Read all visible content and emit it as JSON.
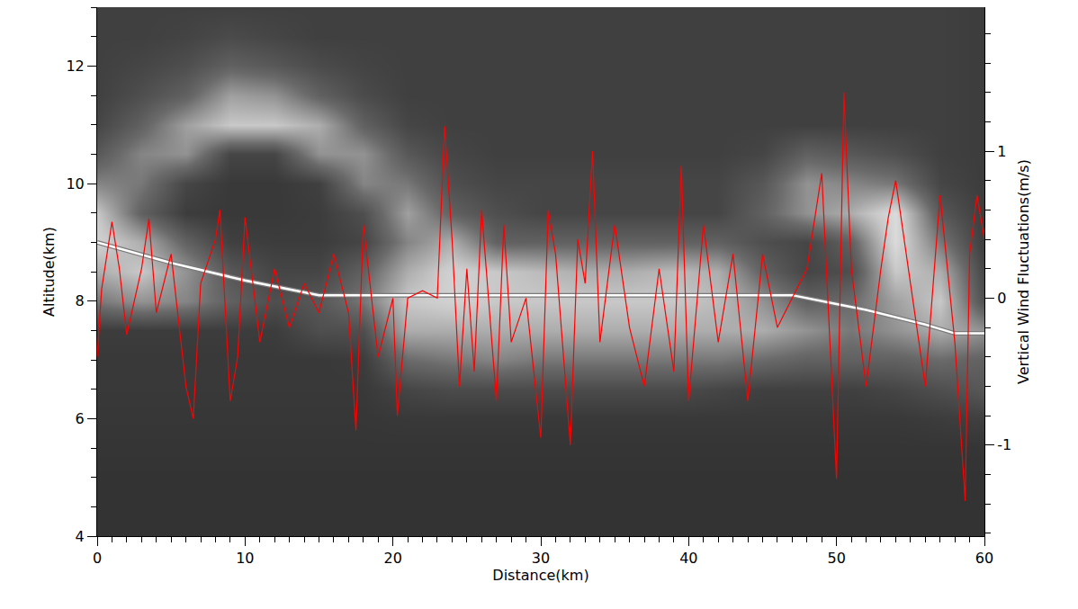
{
  "chart_data": {
    "type": "line",
    "x_label": "Distance(km)",
    "y_label": "Altitude(km)",
    "y2_label": "Vertical Wind Fluctuations(m/s)",
    "xlim": [
      0,
      60
    ],
    "ylim": [
      4,
      13
    ],
    "y2lim": [
      -1.62,
      1.98
    ],
    "xticks": [
      0,
      10,
      20,
      30,
      40,
      50,
      60
    ],
    "yticks": [
      4,
      6,
      8,
      10,
      12
    ],
    "y2ticks": [
      -1,
      0,
      1
    ],
    "grid": false,
    "background": {
      "type": "heatmap",
      "zlim": [
        0,
        1
      ],
      "x": [
        0,
        3,
        6,
        9,
        12,
        15,
        18,
        21,
        24,
        27,
        30,
        33,
        36,
        39,
        42,
        45,
        48,
        51,
        54,
        57,
        60
      ],
      "y": [
        4,
        4.5,
        5,
        5.5,
        6,
        6.5,
        7,
        7.5,
        8,
        8.5,
        9,
        9.5,
        10,
        10.5,
        11,
        11.5,
        12,
        12.5,
        13
      ],
      "z": [
        [
          0.05,
          0.05,
          0.05,
          0.05,
          0.05,
          0.05,
          0.05,
          0.05,
          0.05,
          0.05,
          0.05,
          0.05,
          0.05,
          0.05,
          0.05,
          0.05,
          0.05,
          0.05,
          0.05,
          0.05,
          0.05
        ],
        [
          0.05,
          0.05,
          0.05,
          0.05,
          0.05,
          0.05,
          0.05,
          0.05,
          0.05,
          0.05,
          0.05,
          0.05,
          0.05,
          0.05,
          0.05,
          0.05,
          0.05,
          0.05,
          0.05,
          0.05,
          0.05
        ],
        [
          0.05,
          0.05,
          0.05,
          0.05,
          0.05,
          0.05,
          0.05,
          0.05,
          0.05,
          0.05,
          0.05,
          0.05,
          0.05,
          0.05,
          0.05,
          0.05,
          0.05,
          0.05,
          0.05,
          0.05,
          0.05
        ],
        [
          0.06,
          0.06,
          0.06,
          0.06,
          0.06,
          0.06,
          0.06,
          0.06,
          0.06,
          0.06,
          0.06,
          0.06,
          0.06,
          0.06,
          0.06,
          0.06,
          0.06,
          0.06,
          0.06,
          0.06,
          0.06
        ],
        [
          0.07,
          0.07,
          0.07,
          0.07,
          0.07,
          0.07,
          0.07,
          0.08,
          0.08,
          0.08,
          0.08,
          0.08,
          0.08,
          0.08,
          0.08,
          0.08,
          0.08,
          0.08,
          0.08,
          0.1,
          0.12
        ],
        [
          0.08,
          0.08,
          0.08,
          0.08,
          0.08,
          0.08,
          0.08,
          0.15,
          0.18,
          0.18,
          0.18,
          0.18,
          0.18,
          0.18,
          0.15,
          0.12,
          0.12,
          0.12,
          0.15,
          0.2,
          0.25
        ],
        [
          0.08,
          0.08,
          0.08,
          0.08,
          0.08,
          0.08,
          0.1,
          0.35,
          0.4,
          0.45,
          0.4,
          0.4,
          0.4,
          0.4,
          0.4,
          0.35,
          0.3,
          0.3,
          0.3,
          0.35,
          0.3
        ],
        [
          0.1,
          0.1,
          0.1,
          0.1,
          0.1,
          0.2,
          0.2,
          0.6,
          0.6,
          0.6,
          0.6,
          0.6,
          0.6,
          0.6,
          0.6,
          0.6,
          0.5,
          0.4,
          0.5,
          0.6,
          0.5
        ],
        [
          0.4,
          0.5,
          0.45,
          0.3,
          0.2,
          0.25,
          0.4,
          0.7,
          0.75,
          0.7,
          0.7,
          0.7,
          0.7,
          0.7,
          0.65,
          0.5,
          0.3,
          0.35,
          0.55,
          0.7,
          0.2
        ],
        [
          0.6,
          0.7,
          0.5,
          0.25,
          0.15,
          0.15,
          0.3,
          0.6,
          0.75,
          0.7,
          0.65,
          0.6,
          0.6,
          0.65,
          0.6,
          0.3,
          0.15,
          0.2,
          0.7,
          0.6,
          0.15
        ],
        [
          0.75,
          0.6,
          0.3,
          0.12,
          0.1,
          0.1,
          0.15,
          0.45,
          0.6,
          0.3,
          0.3,
          0.3,
          0.3,
          0.3,
          0.3,
          0.2,
          0.15,
          0.3,
          0.8,
          0.4,
          0.1
        ],
        [
          0.7,
          0.3,
          0.1,
          0.08,
          0.08,
          0.1,
          0.2,
          0.55,
          0.3,
          0.2,
          0.15,
          0.15,
          0.15,
          0.15,
          0.15,
          0.3,
          0.5,
          0.6,
          0.8,
          0.25,
          0.1
        ],
        [
          0.45,
          0.4,
          0.15,
          0.08,
          0.08,
          0.12,
          0.45,
          0.4,
          0.2,
          0.15,
          0.15,
          0.15,
          0.15,
          0.15,
          0.15,
          0.25,
          0.5,
          0.45,
          0.4,
          0.15,
          0.1
        ],
        [
          0.25,
          0.45,
          0.5,
          0.15,
          0.15,
          0.5,
          0.5,
          0.25,
          0.15,
          0.12,
          0.12,
          0.12,
          0.12,
          0.12,
          0.12,
          0.15,
          0.3,
          0.25,
          0.2,
          0.12,
          0.1
        ],
        [
          0.15,
          0.3,
          0.55,
          0.7,
          0.7,
          0.6,
          0.3,
          0.15,
          0.12,
          0.12,
          0.12,
          0.12,
          0.12,
          0.12,
          0.12,
          0.12,
          0.12,
          0.12,
          0.12,
          0.12,
          0.1
        ],
        [
          0.12,
          0.2,
          0.3,
          0.55,
          0.5,
          0.3,
          0.18,
          0.12,
          0.12,
          0.12,
          0.12,
          0.12,
          0.12,
          0.12,
          0.12,
          0.12,
          0.12,
          0.12,
          0.12,
          0.12,
          0.1
        ],
        [
          0.12,
          0.15,
          0.2,
          0.3,
          0.25,
          0.18,
          0.14,
          0.12,
          0.12,
          0.12,
          0.12,
          0.12,
          0.12,
          0.12,
          0.12,
          0.12,
          0.12,
          0.12,
          0.12,
          0.12,
          0.1
        ],
        [
          0.12,
          0.12,
          0.14,
          0.18,
          0.15,
          0.12,
          0.12,
          0.12,
          0.12,
          0.12,
          0.12,
          0.12,
          0.12,
          0.12,
          0.12,
          0.12,
          0.12,
          0.12,
          0.12,
          0.12,
          0.1
        ],
        [
          0.12,
          0.12,
          0.12,
          0.12,
          0.12,
          0.12,
          0.12,
          0.12,
          0.12,
          0.12,
          0.12,
          0.12,
          0.12,
          0.12,
          0.12,
          0.12,
          0.12,
          0.12,
          0.12,
          0.12,
          0.1
        ]
      ]
    },
    "series": [
      {
        "color": "#ffffff",
        "line_style": "solid",
        "x": [
          0,
          5,
          10,
          12,
          15,
          20,
          30,
          40,
          47,
          50,
          52,
          56,
          58,
          60
        ],
        "values": [
          9.0,
          8.65,
          8.35,
          8.25,
          8.1,
          8.1,
          8.1,
          8.1,
          8.1,
          7.95,
          7.85,
          7.6,
          7.45,
          7.45
        ]
      },
      {
        "color": "#ff0000",
        "line_style": "solid",
        "axis": "y2",
        "x": [
          0,
          0.3,
          1,
          1.5,
          2,
          3,
          3.5,
          4,
          5,
          6,
          6.5,
          7,
          8,
          8.3,
          9,
          9.5,
          10,
          11,
          12,
          13,
          14,
          15,
          16,
          17,
          17.5,
          18,
          19,
          20,
          20.3,
          21,
          22,
          23,
          23.5,
          24,
          24.5,
          25,
          25.5,
          26,
          27,
          27.5,
          28,
          29,
          30,
          30.5,
          31,
          32,
          32.5,
          33,
          33.5,
          34,
          35,
          36,
          37,
          38,
          39,
          39.5,
          40,
          41,
          42,
          43,
          44,
          45,
          46,
          47,
          48,
          49,
          50,
          50.5,
          51,
          52,
          53,
          53.5,
          54,
          55,
          56,
          57,
          58,
          58.7,
          59,
          59.5,
          60
        ],
        "values": [
          -0.4,
          0.06,
          0.52,
          0.2,
          -0.25,
          0.2,
          0.54,
          -0.1,
          0.3,
          -0.6,
          -0.82,
          0.1,
          0.4,
          0.6,
          -0.7,
          -0.4,
          0.55,
          -0.3,
          0.2,
          -0.2,
          0.1,
          -0.1,
          0.3,
          -0.1,
          -0.9,
          0.5,
          -0.4,
          0.0,
          -0.8,
          0.0,
          0.05,
          0.0,
          1.17,
          0.4,
          -0.6,
          0.2,
          -0.5,
          0.6,
          -0.7,
          0.5,
          -0.3,
          0.0,
          -0.95,
          0.6,
          0.3,
          -1.0,
          0.4,
          0.1,
          1.0,
          -0.3,
          0.5,
          -0.2,
          -0.6,
          0.2,
          -0.5,
          0.9,
          -0.7,
          0.5,
          -0.3,
          0.3,
          -0.7,
          0.3,
          -0.2,
          0.0,
          0.2,
          0.85,
          -1.23,
          1.4,
          0.2,
          -0.6,
          0.2,
          0.55,
          0.8,
          0.1,
          -0.6,
          0.7,
          -0.3,
          -1.38,
          0.3,
          0.7,
          0.4
        ]
      }
    ]
  }
}
